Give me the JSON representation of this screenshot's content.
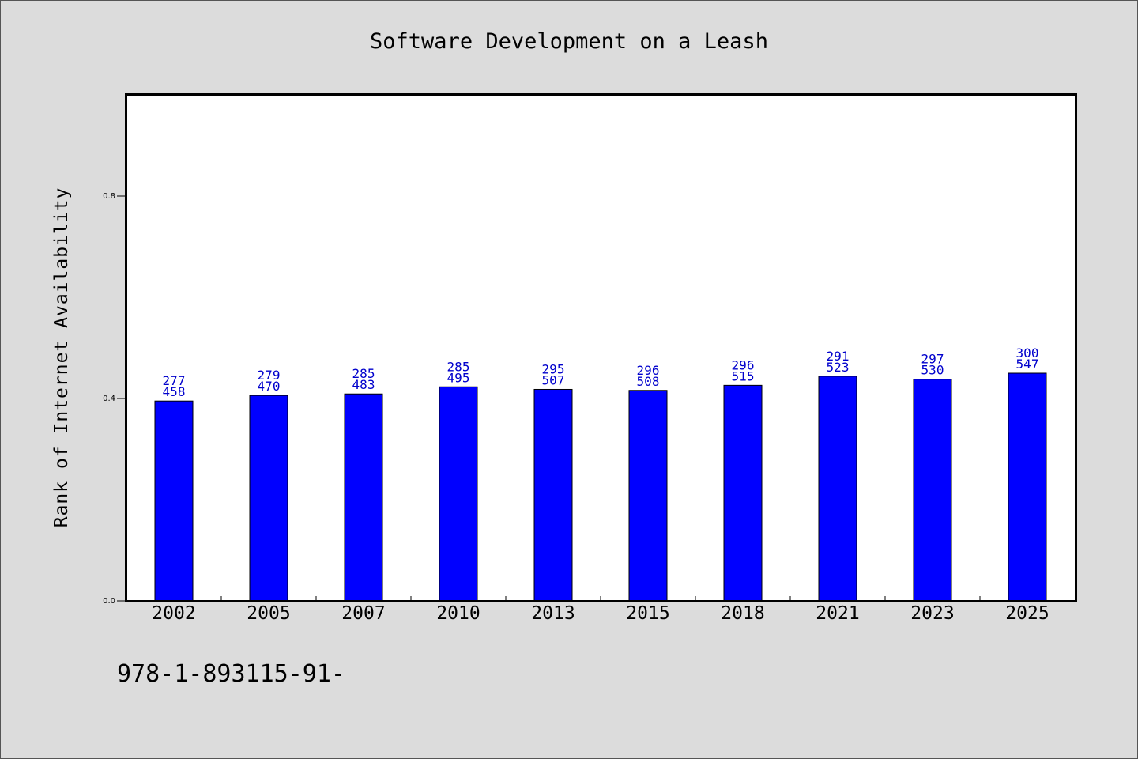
{
  "chart_data": {
    "type": "bar",
    "title": "Software Development on a Leash",
    "ylabel": "Rank of Internet Availability",
    "xlabel": "",
    "categories": [
      "2002",
      "2005",
      "2007",
      "2010",
      "2013",
      "2015",
      "2018",
      "2021",
      "2023",
      "2025"
    ],
    "values": [
      0.395,
      0.406,
      0.409,
      0.423,
      0.418,
      0.416,
      0.426,
      0.444,
      0.438,
      0.45
    ],
    "label_top": [
      "277",
      "279",
      "285",
      "285",
      "295",
      "296",
      "296",
      "291",
      "297",
      "300"
    ],
    "label_bottom": [
      "458",
      "470",
      "483",
      "495",
      "507",
      "508",
      "515",
      "523",
      "530",
      "547"
    ],
    "ylim": [
      0,
      1.0
    ],
    "yticks": [
      0.0,
      0.4,
      0.8
    ],
    "ytick_labels": [
      "0.0",
      "0.4",
      "0.8"
    ],
    "grid": false,
    "colors": {
      "bar": "#0000ff",
      "bar_edge": "#000000",
      "label": "#0000cc",
      "background": "#dcdcdc",
      "plot_bg": "#ffffff"
    }
  },
  "footer": {
    "text": "978-1-893115-91-"
  }
}
